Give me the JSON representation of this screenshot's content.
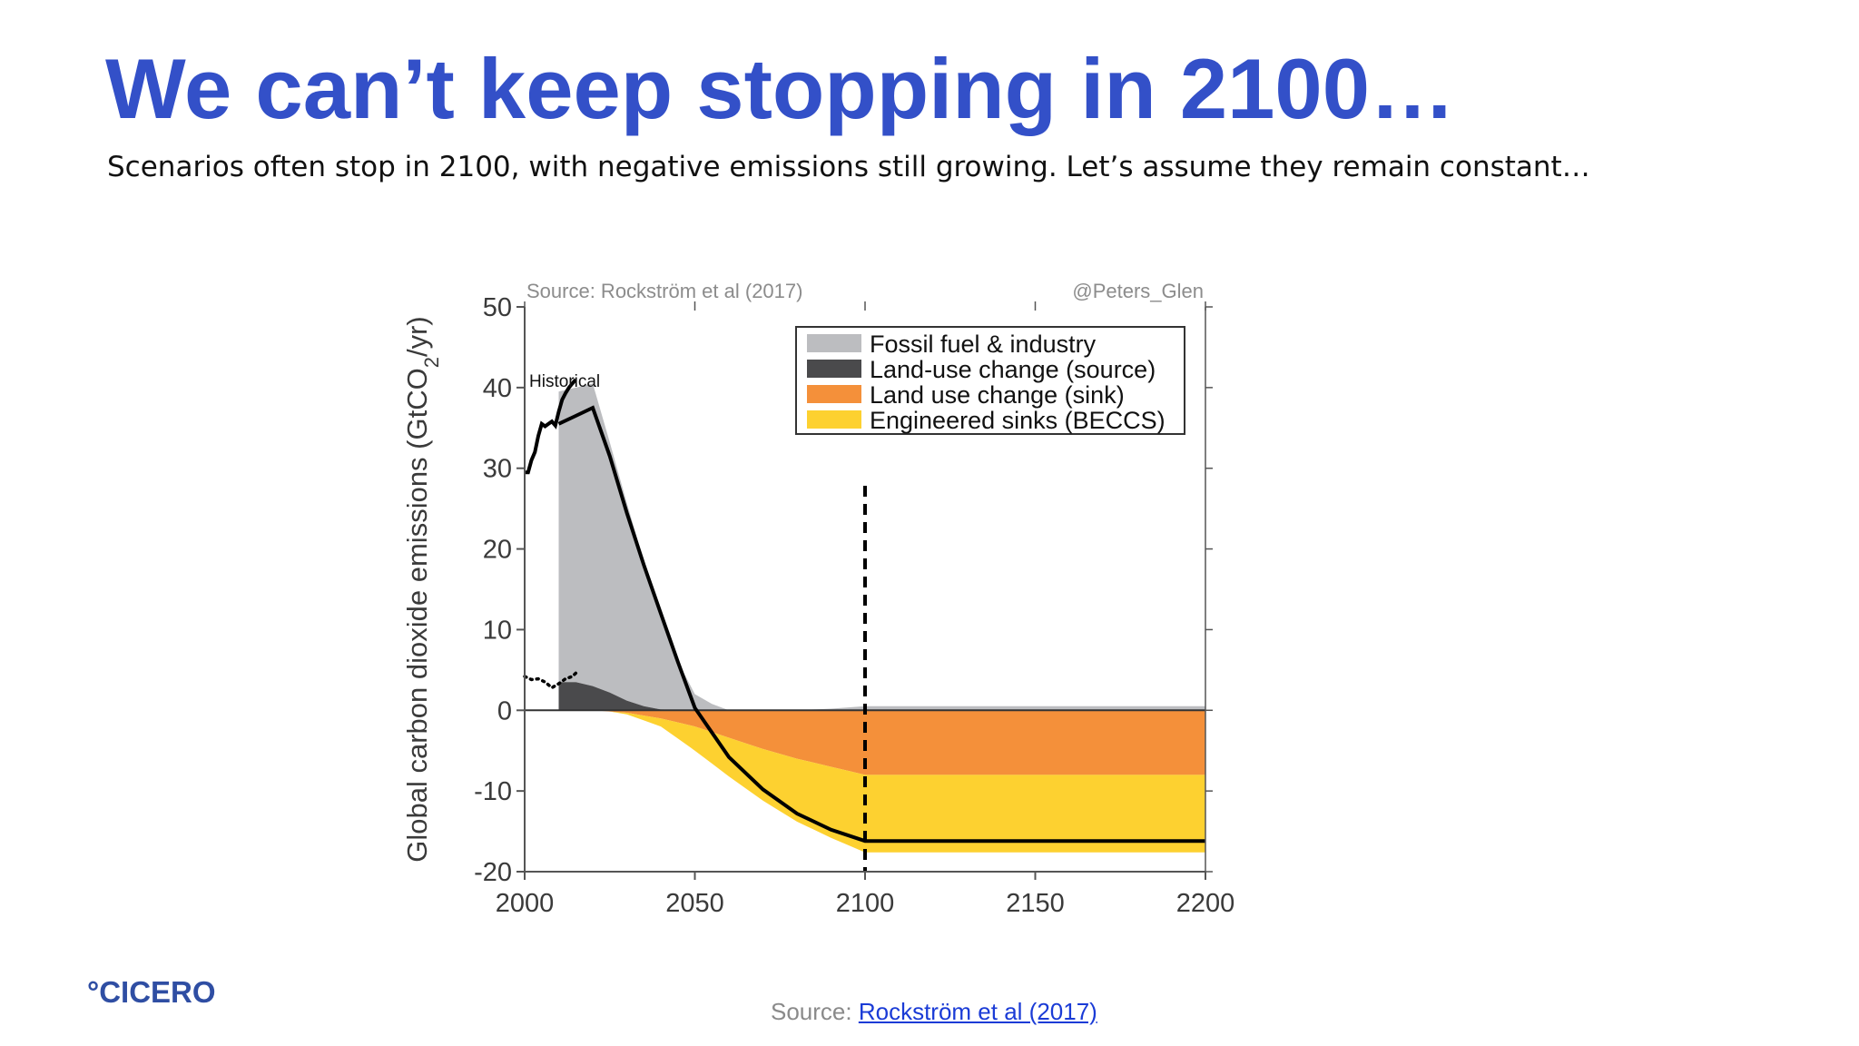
{
  "slide": {
    "title": "We can’t keep stopping in 2100…",
    "subtitle": "Scenarios often stop in 2100, with negative emissions still growing. Let’s assume they remain constant…",
    "logo": "°CICERO",
    "footer_prefix": "Source: ",
    "footer_link": "Rockström et al (2017)"
  },
  "chart_data": {
    "type": "area",
    "source_note": "Source: Rockström et al (2017)",
    "credit": "@Peters_Glen",
    "ylabel_main": "Global carbon dioxide emissions (GtCO",
    "ylabel_sub": "2",
    "ylabel_end": "/yr)",
    "xlim": [
      2000,
      2200
    ],
    "ylim": [
      -20,
      50
    ],
    "xticks": [
      2000,
      2050,
      2100,
      2150,
      2200
    ],
    "yticks": [
      -20,
      -10,
      0,
      10,
      20,
      30,
      40,
      50
    ],
    "legend_position": "top-right",
    "vertical_dashed_line_x": 2100,
    "annotation": "Historical",
    "colors": {
      "fossil": "#bcbdc0",
      "landuse_source": "#4a4a4c",
      "landuse_sink": "#f4903a",
      "beccs": "#fdd130",
      "line": "#000000"
    },
    "series": [
      {
        "name": "Fossil fuel & industry",
        "key": "fossil",
        "x": [
          2010,
          2015,
          2020,
          2025,
          2030,
          2035,
          2040,
          2045,
          2050,
          2055,
          2060,
          2070,
          2080,
          2090,
          2100,
          2200
        ],
        "y": [
          36,
          36.5,
          37.5,
          31,
          24.5,
          18,
          12,
          6,
          2,
          0.8,
          0,
          -0.6,
          -0.3,
          0.2,
          0.5,
          0.5
        ]
      },
      {
        "name": "Land-use change (source)",
        "key": "landuse_source",
        "x": [
          2010,
          2015,
          2020,
          2025,
          2030,
          2035,
          2040,
          2050
        ],
        "y": [
          3.5,
          3.5,
          3,
          2.2,
          1.2,
          0.5,
          0.1,
          0
        ]
      },
      {
        "name": "Land use change (sink)",
        "key": "landuse_sink",
        "x": [
          2020,
          2030,
          2040,
          2050,
          2060,
          2070,
          2080,
          2090,
          2100,
          2200
        ],
        "y": [
          0,
          -0.3,
          -1,
          -2,
          -3.4,
          -4.8,
          -6,
          -7,
          -8,
          -8
        ]
      },
      {
        "name": "Engineered sinks (BECCS)",
        "key": "beccs",
        "x": [
          2025,
          2030,
          2040,
          2050,
          2060,
          2070,
          2080,
          2090,
          2100,
          2200
        ],
        "y": [
          0,
          -0.2,
          -1,
          -3,
          -4.8,
          -6.4,
          -7.8,
          -8.8,
          -9.6,
          -9.6
        ]
      }
    ],
    "net_line": {
      "x": [
        2010,
        2015,
        2020,
        2025,
        2030,
        2035,
        2040,
        2045,
        2050,
        2060,
        2070,
        2080,
        2090,
        2100,
        2200
      ],
      "y": [
        35.5,
        36.5,
        37.5,
        31.5,
        24.5,
        18,
        12,
        6,
        0.3,
        -5.8,
        -9.8,
        -12.8,
        -14.8,
        -16.2,
        -16.2
      ]
    },
    "historical_line": {
      "x": [
        2000,
        2001,
        2002,
        2003,
        2004,
        2005,
        2006,
        2007,
        2008,
        2009,
        2010,
        2011,
        2012,
        2013,
        2014,
        2015
      ],
      "y": [
        29.5,
        29.5,
        31,
        32,
        34,
        35.5,
        35.2,
        35.5,
        35.8,
        35.3,
        37,
        38.5,
        39.3,
        40,
        40.5,
        41
      ]
    },
    "historical_landuse": {
      "x": [
        2000,
        2002,
        2004,
        2006,
        2008,
        2010,
        2012,
        2014,
        2015
      ],
      "y": [
        4.2,
        3.8,
        3.9,
        3.5,
        2.8,
        3.3,
        3.9,
        4.2,
        4.6
      ]
    }
  }
}
